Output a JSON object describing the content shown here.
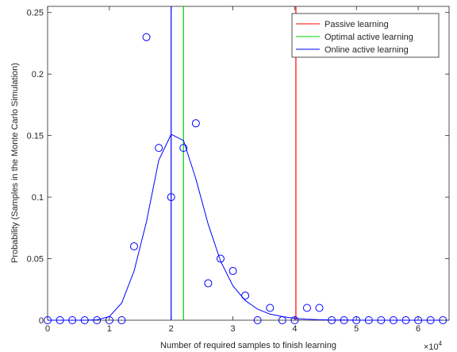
{
  "chart_data": {
    "type": "line",
    "xlabel": "Number of required samples to finish learning",
    "ylabel": "Probability (Samples in the Monte Carlo Simulation)",
    "x_exponent_label": "×10",
    "x_exponent_power": "4",
    "xlim": [
      0,
      6.5
    ],
    "ylim": [
      0,
      0.255
    ],
    "x_ticks": [
      0,
      1,
      2,
      3,
      4,
      5,
      6
    ],
    "x_tick_labels": [
      "0",
      "1",
      "2",
      "3",
      "4",
      "5",
      "6"
    ],
    "y_ticks": [
      0,
      0.05,
      0.1,
      0.15,
      0.2,
      0.25
    ],
    "y_tick_labels": [
      "0",
      "0.05",
      "0.1",
      "0.15",
      "0.2",
      "0.25"
    ],
    "grid": false,
    "legend_position": "top-right",
    "samples": {
      "color": "#0000ff",
      "marker": "circle",
      "x": [
        0,
        0.2,
        0.4,
        0.6,
        0.8,
        1.0,
        1.2,
        1.4,
        1.6,
        1.8,
        2.0,
        2.2,
        2.4,
        2.6,
        2.8,
        3.0,
        3.2,
        3.4,
        3.6,
        3.8,
        4.0,
        4.2,
        4.4,
        4.6,
        4.8,
        5.0,
        5.2,
        5.4,
        5.6,
        5.8,
        6.0,
        6.2,
        6.4
      ],
      "y": [
        0,
        0,
        0,
        0,
        0,
        0,
        0,
        0.06,
        0.23,
        0.14,
        0.1,
        0.14,
        0.16,
        0.03,
        0.05,
        0.04,
        0.02,
        0,
        0.01,
        0,
        0,
        0.01,
        0.01,
        0,
        0,
        0,
        0,
        0,
        0,
        0,
        0,
        0,
        0
      ]
    },
    "fit": {
      "color": "#0000ff",
      "x": [
        0,
        0.2,
        0.4,
        0.6,
        0.8,
        1.0,
        1.2,
        1.4,
        1.6,
        1.8,
        2.0,
        2.2,
        2.4,
        2.6,
        2.8,
        3.0,
        3.2,
        3.4,
        3.6,
        3.8,
        4.0,
        4.2,
        4.4,
        4.6,
        4.8,
        5.0,
        5.2,
        5.4,
        5.6,
        5.8,
        6.0,
        6.2,
        6.4
      ],
      "y": [
        0,
        0,
        0,
        0,
        0.0003,
        0.003,
        0.014,
        0.04,
        0.08,
        0.13,
        0.151,
        0.146,
        0.115,
        0.078,
        0.048,
        0.028,
        0.016,
        0.009,
        0.005,
        0.003,
        0.0015,
        0.0008,
        0.0004,
        0.0002,
        0.0001,
        0,
        0,
        0,
        0,
        0,
        0,
        0,
        0
      ]
    },
    "vlines": [
      {
        "name": "Passive learning",
        "x": 4.02,
        "color": "#ff0000"
      },
      {
        "name": "Optimal active learning",
        "x": 2.2,
        "color": "#00cc00"
      },
      {
        "name": "Online active learning",
        "x": 2.0,
        "color": "#0000ff"
      }
    ]
  }
}
